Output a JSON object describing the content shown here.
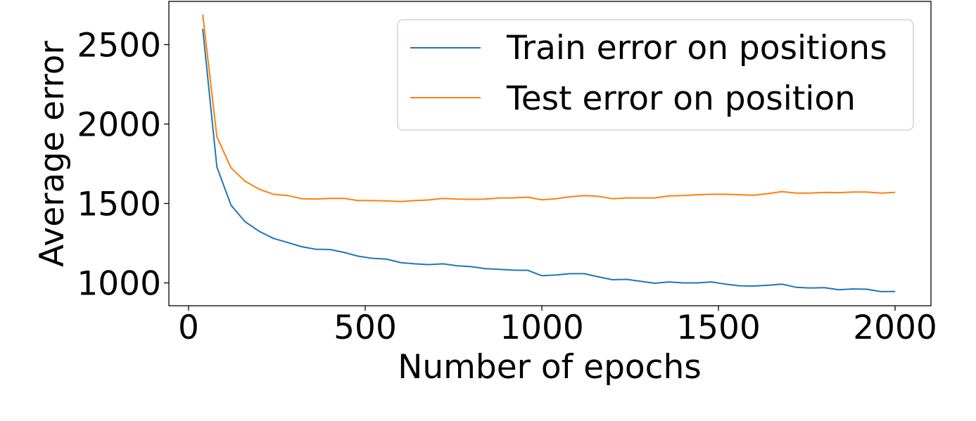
{
  "chart_data": {
    "type": "line",
    "title": "",
    "xlabel": "Number of epochs",
    "ylabel": "Average error",
    "xlim": [
      -50,
      2100
    ],
    "ylim": [
      880,
      2790
    ],
    "xticks": [
      0,
      500,
      1000,
      1500,
      2000
    ],
    "yticks": [
      1000,
      1500,
      2000,
      2500
    ],
    "grid": false,
    "legend_position": "top-right",
    "x": [
      40,
      80,
      120,
      160,
      200,
      240,
      280,
      320,
      360,
      400,
      440,
      480,
      520,
      560,
      600,
      640,
      680,
      720,
      760,
      800,
      840,
      880,
      920,
      960,
      1000,
      1040,
      1080,
      1120,
      1160,
      1200,
      1240,
      1280,
      1320,
      1360,
      1400,
      1440,
      1480,
      1520,
      1560,
      1600,
      1640,
      1680,
      1720,
      1760,
      1800,
      1840,
      1880,
      1920,
      1960,
      2000
    ],
    "series": [
      {
        "name": "Train error on positions",
        "color": "#1f77b4",
        "values": [
          2600,
          1730,
          1490,
          1385,
          1325,
          1280,
          1255,
          1228,
          1212,
          1210,
          1192,
          1168,
          1155,
          1150,
          1128,
          1120,
          1115,
          1120,
          1108,
          1102,
          1090,
          1085,
          1080,
          1079,
          1045,
          1050,
          1058,
          1058,
          1038,
          1020,
          1022,
          1010,
          998,
          1006,
          1000,
          1000,
          1006,
          992,
          982,
          980,
          985,
          992,
          972,
          968,
          970,
          957,
          962,
          960,
          945,
          946
        ]
      },
      {
        "name": "Test error on position",
        "color": "#ff7f0e",
        "values": [
          2690,
          1920,
          1725,
          1640,
          1590,
          1558,
          1550,
          1530,
          1528,
          1532,
          1532,
          1518,
          1518,
          1516,
          1512,
          1518,
          1522,
          1532,
          1528,
          1526,
          1528,
          1535,
          1535,
          1540,
          1523,
          1530,
          1542,
          1550,
          1545,
          1530,
          1535,
          1535,
          1535,
          1548,
          1550,
          1555,
          1558,
          1558,
          1555,
          1552,
          1562,
          1575,
          1565,
          1565,
          1570,
          1568,
          1572,
          1572,
          1565,
          1570
        ]
      }
    ]
  }
}
